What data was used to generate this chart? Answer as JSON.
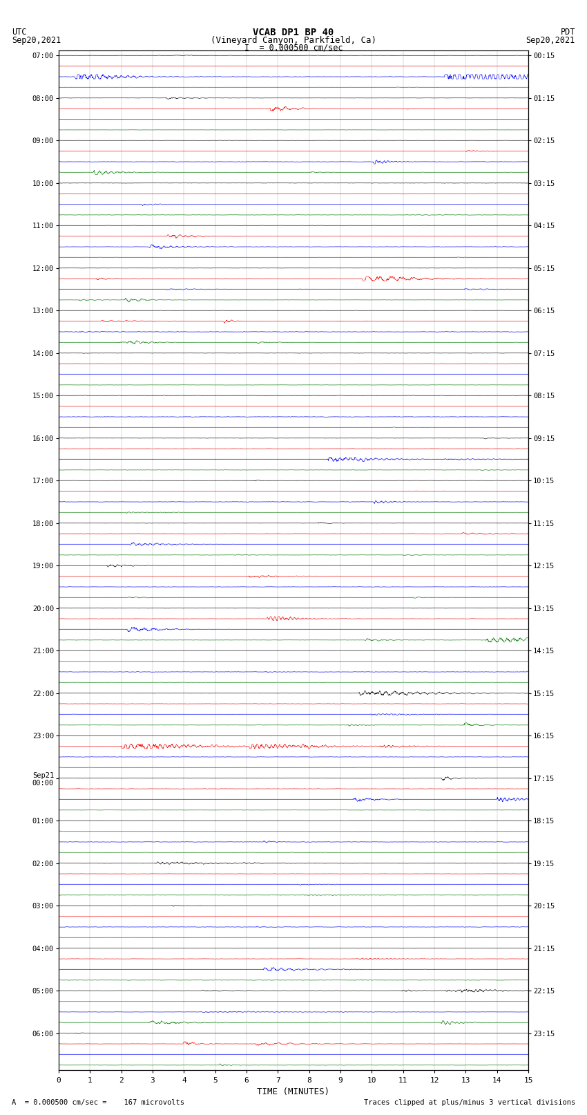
{
  "title_line1": "VCAB DP1 BP 40",
  "title_line2": "(Vineyard Canyon, Parkfield, Ca)",
  "title_line3": "I  = 0.000500 cm/sec",
  "left_header_top": "UTC",
  "left_header_bot": "Sep20,2021",
  "right_header_top": "PDT",
  "right_header_bot": "Sep20,2021",
  "utc_labels": [
    "07:00",
    "08:00",
    "09:00",
    "10:00",
    "11:00",
    "12:00",
    "13:00",
    "14:00",
    "15:00",
    "16:00",
    "17:00",
    "18:00",
    "19:00",
    "20:00",
    "21:00",
    "22:00",
    "23:00",
    "Sep21\n00:00",
    "01:00",
    "02:00",
    "03:00",
    "04:00",
    "05:00",
    "06:00"
  ],
  "pdt_labels": [
    "00:15",
    "01:15",
    "02:15",
    "03:15",
    "04:15",
    "05:15",
    "06:15",
    "07:15",
    "08:15",
    "09:15",
    "10:15",
    "11:15",
    "12:15",
    "13:15",
    "14:15",
    "15:15",
    "16:15",
    "17:15",
    "18:15",
    "19:15",
    "20:15",
    "21:15",
    "22:15",
    "23:15"
  ],
  "xlabel": "TIME (MINUTES)",
  "footer_left": "A  = 0.000500 cm/sec =    167 microvolts",
  "footer_right": "Traces clipped at plus/minus 3 vertical divisions",
  "bg_color": "#ffffff",
  "trace_colors": [
    "black",
    "red",
    "blue",
    "green"
  ],
  "n_rows": 24,
  "n_traces_per_row": 4,
  "xlim": [
    0,
    15
  ],
  "xticks": [
    0,
    1,
    2,
    3,
    4,
    5,
    6,
    7,
    8,
    9,
    10,
    11,
    12,
    13,
    14,
    15
  ],
  "grid_color": "#888888",
  "grid_lw": 0.3
}
